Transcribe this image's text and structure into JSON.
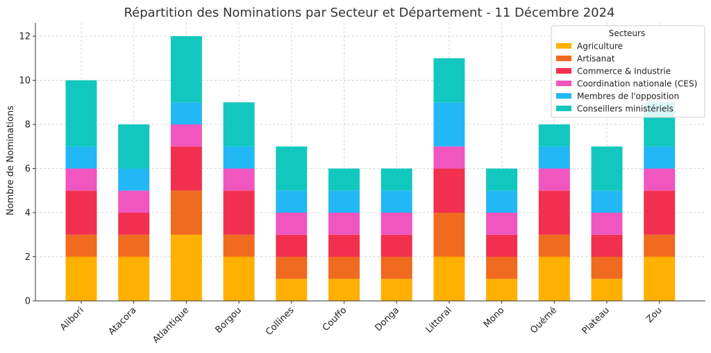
{
  "chart_data": {
    "type": "bar",
    "stacked": true,
    "title": "Répartition des Nominations par Secteur et Département - 11 Décembre 2024",
    "xlabel": "",
    "ylabel": "Nombre de Nominations",
    "ylim": [
      0,
      12.6
    ],
    "yticks": [
      0,
      2,
      4,
      6,
      8,
      10,
      12
    ],
    "grid": true,
    "legend_title": "Secteurs",
    "legend_position": "top-right",
    "categories": [
      "Alibori",
      "Atacora",
      "Atlantique",
      "Borgou",
      "Collines",
      "Couffo",
      "Donga",
      "Littoral",
      "Mono",
      "Ouémé",
      "Plateau",
      "Zou"
    ],
    "series": [
      {
        "name": "Agriculture",
        "color": "#FFB000",
        "values": [
          2,
          2,
          3,
          2,
          1,
          1,
          1,
          2,
          1,
          2,
          1,
          2
        ]
      },
      {
        "name": "Artisanat",
        "color": "#F06A1F",
        "values": [
          1,
          1,
          2,
          1,
          1,
          1,
          1,
          2,
          1,
          1,
          1,
          1
        ]
      },
      {
        "name": "Commerce & Industrie",
        "color": "#F0304E",
        "values": [
          2,
          1,
          2,
          2,
          1,
          1,
          1,
          2,
          1,
          2,
          1,
          2
        ]
      },
      {
        "name": "Coordination nationale (CES)",
        "color": "#F055C0",
        "values": [
          1,
          1,
          1,
          1,
          1,
          1,
          1,
          1,
          1,
          1,
          1,
          1
        ]
      },
      {
        "name": "Membres de l'opposition",
        "color": "#22B8F5",
        "values": [
          1,
          1,
          1,
          1,
          1,
          1,
          1,
          2,
          1,
          1,
          1,
          1
        ]
      },
      {
        "name": "Conseillers ministériels",
        "color": "#12C8BE",
        "values": [
          3,
          2,
          3,
          2,
          2,
          1,
          1,
          2,
          1,
          1,
          2,
          2
        ]
      }
    ]
  }
}
